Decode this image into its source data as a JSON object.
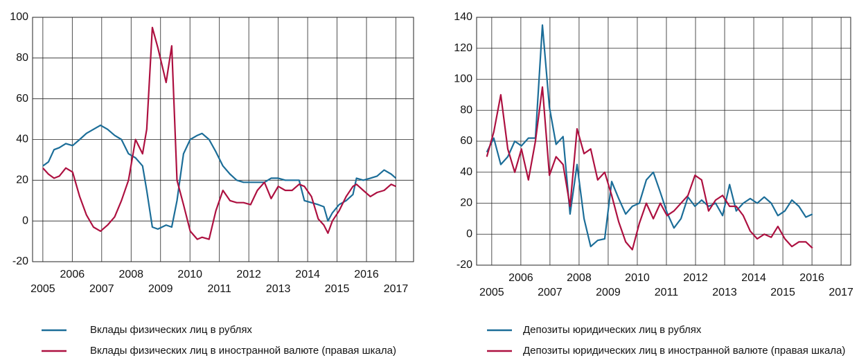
{
  "chart_data": [
    {
      "type": "line",
      "x": [
        2005.0,
        2005.19,
        2005.38,
        2005.56,
        2005.78,
        2006.01,
        2006.25,
        2006.48,
        2006.72,
        2006.96,
        2007.2,
        2007.44,
        2007.67,
        2007.91,
        2008.15,
        2008.39,
        2008.53,
        2008.72,
        2008.91,
        2009.19,
        2009.38,
        2009.56,
        2009.78,
        2010.01,
        2010.25,
        2010.41,
        2010.65,
        2010.88,
        2011.12,
        2011.36,
        2011.59,
        2011.82,
        2012.06,
        2012.29,
        2012.53,
        2012.76,
        2013.0,
        2013.24,
        2013.47,
        2013.71,
        2013.89,
        2014.13,
        2014.36,
        2014.55,
        2014.69,
        2014.84,
        2015.07,
        2015.31,
        2015.54,
        2015.66,
        2015.89,
        2016.13,
        2016.36,
        2016.6,
        2016.84,
        2017.0
      ],
      "series": [
        {
          "name": "Вклады физических лиц в рублях",
          "color": "#1b6d98",
          "values": [
            27,
            29,
            35,
            36,
            38,
            37,
            40,
            43,
            45,
            47,
            45,
            42,
            40,
            33,
            31,
            27,
            15,
            -3,
            -4,
            -2,
            -3,
            10,
            33,
            40,
            42,
            43,
            40,
            34,
            27,
            23,
            20,
            19,
            19,
            19,
            19,
            21,
            21,
            20,
            20,
            20,
            10,
            9,
            8,
            7,
            0,
            4,
            8,
            10,
            13,
            21,
            20,
            21,
            22,
            25,
            23,
            21
          ]
        },
        {
          "name": "Вклады физических лиц в иностранной валюте (правая шкала)",
          "color": "#ad1040",
          "values": [
            26,
            23,
            21,
            22,
            26,
            24,
            12,
            3,
            -3,
            -5,
            -2,
            2,
            10,
            20,
            40,
            33,
            45,
            95,
            85,
            68,
            86,
            20,
            8,
            -5,
            -9,
            -8,
            -9,
            5,
            15,
            10,
            9,
            9,
            8,
            15,
            19,
            11,
            17,
            15,
            15,
            18,
            17,
            12,
            1,
            -2,
            -6,
            0,
            5,
            12,
            17,
            18,
            15,
            12,
            14,
            15,
            18,
            17
          ]
        }
      ],
      "xlim": [
        2004.65,
        2017.6
      ],
      "ylim": [
        -20,
        100
      ],
      "xticks": [
        2005,
        2006,
        2007,
        2008,
        2009,
        2010,
        2011,
        2012,
        2013,
        2014,
        2015,
        2016,
        2017
      ],
      "yticks": [
        -20,
        0,
        20,
        40,
        60,
        80,
        100
      ],
      "grid": true
    },
    {
      "type": "line",
      "x": [
        2004.83,
        2005.07,
        2005.31,
        2005.55,
        2005.79,
        2006.02,
        2006.26,
        2006.5,
        2006.74,
        2006.98,
        2007.21,
        2007.45,
        2007.69,
        2007.93,
        2008.17,
        2008.4,
        2008.64,
        2008.88,
        2009.12,
        2009.36,
        2009.6,
        2009.83,
        2010.07,
        2010.31,
        2010.55,
        2010.79,
        2011.02,
        2011.26,
        2011.5,
        2011.74,
        2011.98,
        2012.21,
        2012.45,
        2012.69,
        2012.93,
        2013.17,
        2013.4,
        2013.64,
        2013.88,
        2014.12,
        2014.36,
        2014.6,
        2014.83,
        2015.07,
        2015.31,
        2015.55,
        2015.79,
        2016.02
      ],
      "series": [
        {
          "name": "Депозиты юридических лиц в рублях",
          "color": "#1b6d98",
          "values": [
            53,
            62,
            45,
            50,
            60,
            57,
            62,
            62,
            135,
            82,
            58,
            63,
            13,
            45,
            10,
            -8,
            -4,
            -3,
            34,
            23,
            13,
            18,
            20,
            35,
            40,
            27,
            14,
            4,
            10,
            24,
            18,
            22,
            18,
            20,
            12,
            32,
            15,
            20,
            23,
            20,
            24,
            20,
            12,
            15,
            22,
            18,
            11,
            13
          ]
        },
        {
          "name": "Депозиты юридических лиц в иностранной валюте (правая шкала)",
          "color": "#ad1040",
          "values": [
            50,
            66,
            90,
            55,
            40,
            55,
            35,
            60,
            95,
            38,
            50,
            45,
            18,
            68,
            52,
            55,
            35,
            40,
            25,
            8,
            -5,
            -10,
            7,
            20,
            10,
            20,
            12,
            15,
            20,
            25,
            38,
            35,
            15,
            22,
            25,
            18,
            18,
            12,
            2,
            -3,
            0,
            -2,
            5,
            -3,
            -8,
            -5,
            -5,
            -9
          ]
        }
      ],
      "xlim": [
        2004.48,
        2017.33
      ],
      "ylim": [
        -20,
        140
      ],
      "xticks": [
        2005,
        2006,
        2007,
        2008,
        2009,
        2010,
        2011,
        2012,
        2013,
        2014,
        2015,
        2016,
        2017
      ],
      "yticks": [
        -20,
        0,
        20,
        40,
        60,
        80,
        100,
        120,
        140
      ],
      "grid": true
    }
  ]
}
